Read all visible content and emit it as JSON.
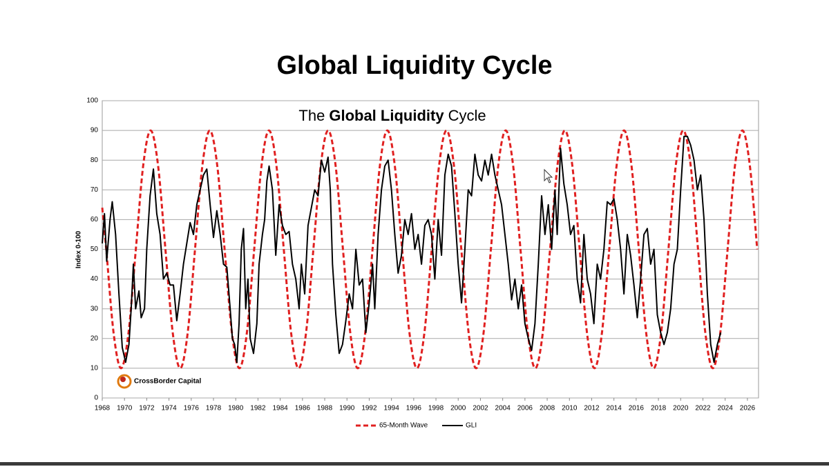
{
  "slide_title": "Global Liquidity Cycle",
  "logo": "CrossBorder Capital",
  "chart_data": {
    "type": "line",
    "title_parts": [
      "The",
      "Global Liquidity",
      "Cycle"
    ],
    "y_label": "Index 0-100",
    "xlim": [
      1968,
      2027
    ],
    "ylim": [
      0,
      100
    ],
    "xticks": [
      1968,
      1970,
      1972,
      1974,
      1976,
      1978,
      1980,
      1982,
      1984,
      1986,
      1988,
      1990,
      1992,
      1994,
      1996,
      1998,
      2000,
      2002,
      2004,
      2006,
      2008,
      2010,
      2012,
      2014,
      2016,
      2018,
      2020,
      2022,
      2024,
      2026
    ],
    "yticks": [
      0,
      10,
      20,
      30,
      40,
      50,
      60,
      70,
      80,
      90,
      100
    ],
    "grid": true,
    "series": [
      {
        "name": "65-Month Wave",
        "color": "#e02020",
        "dashed": true,
        "smooth": true,
        "x": [
          1968,
          1968.36,
          1969.025,
          1969.69,
          1970.355,
          1971.02,
          1971.685,
          1972.35,
          1973.015,
          1973.68,
          1974.345,
          1975.01,
          1975.675,
          1976.34,
          1977.005,
          1977.67,
          1978.335,
          1979,
          1979.665,
          1980.33,
          1980.995,
          1981.66,
          1982.325,
          1982.99,
          1983.655,
          1984.32,
          1984.985,
          1985.65,
          1986.315,
          1986.98,
          1987.645,
          1988.31,
          1988.975,
          1989.64,
          1990.305,
          1990.97,
          1991.635,
          1992.3,
          1992.965,
          1993.63,
          1994.295,
          1994.96,
          1995.625,
          1996.29,
          1996.955,
          1997.62,
          1998.285,
          1998.95,
          1999.615,
          2000.28,
          2000.945,
          2001.61,
          2002.275,
          2002.94,
          2003.605,
          2004.27,
          2004.935,
          2005.6,
          2006.265,
          2006.93,
          2007.595,
          2008.26,
          2008.925,
          2009.59,
          2010.255,
          2010.92,
          2011.585,
          2012.25,
          2012.915,
          2013.58,
          2014.245,
          2014.91,
          2015.575,
          2016.24,
          2016.905,
          2017.57,
          2018.235,
          2018.9,
          2019.565,
          2020.23,
          2020.895,
          2021.56,
          2022.225,
          2022.89,
          2023.555,
          2024.22,
          2024.885,
          2025.55,
          2026.215,
          2026.88
        ],
        "values": [
          64,
          50,
          21.7,
          10,
          21.7,
          50,
          78.3,
          90,
          78.3,
          50,
          21.7,
          10,
          21.7,
          50,
          78.3,
          90,
          78.3,
          50,
          21.7,
          10,
          21.7,
          50,
          78.3,
          90,
          78.3,
          50,
          21.7,
          10,
          21.7,
          50,
          78.3,
          90,
          78.3,
          50,
          21.7,
          10,
          21.7,
          50,
          78.3,
          90,
          78.3,
          50,
          21.7,
          10,
          21.7,
          50,
          78.3,
          90,
          78.3,
          50,
          21.7,
          10,
          21.7,
          50,
          78.3,
          90,
          78.3,
          50,
          21.7,
          10,
          21.7,
          50,
          78.3,
          90,
          78.3,
          50,
          21.7,
          10,
          21.7,
          50,
          78.3,
          90,
          78.3,
          50,
          21.7,
          10,
          21.7,
          50,
          78.3,
          90,
          78.3,
          50,
          21.7,
          10,
          21.7,
          50,
          78.3,
          90,
          78.3,
          50
        ]
      },
      {
        "name": "GLI",
        "color": "#000000",
        "dashed": false,
        "smooth": false,
        "x": [
          1968,
          1968.2,
          1968.4,
          1968.7,
          1968.9,
          1969.2,
          1969.5,
          1969.8,
          1970.1,
          1970.4,
          1970.6,
          1970.8,
          1971.0,
          1971.3,
          1971.5,
          1971.8,
          1972.0,
          1972.3,
          1972.6,
          1972.9,
          1973.2,
          1973.5,
          1973.8,
          1974.1,
          1974.4,
          1974.7,
          1975.0,
          1975.3,
          1975.6,
          1975.9,
          1976.2,
          1976.5,
          1976.8,
          1977.1,
          1977.4,
          1977.7,
          1978.0,
          1978.3,
          1978.6,
          1978.9,
          1979.2,
          1979.5,
          1979.7,
          1979.9,
          1980.1,
          1980.3,
          1980.5,
          1980.7,
          1980.9,
          1981.1,
          1981.3,
          1981.6,
          1981.9,
          1982.1,
          1982.4,
          1982.6,
          1982.8,
          1983.0,
          1983.3,
          1983.6,
          1983.9,
          1984.2,
          1984.5,
          1984.8,
          1985.1,
          1985.4,
          1985.7,
          1985.9,
          1986.2,
          1986.5,
          1986.8,
          1987.1,
          1987.4,
          1987.7,
          1988.0,
          1988.3,
          1988.5,
          1988.7,
          1989.0,
          1989.3,
          1989.6,
          1989.9,
          1990.2,
          1990.5,
          1990.8,
          1991.1,
          1991.4,
          1991.7,
          1992.0,
          1992.3,
          1992.5,
          1992.8,
          1993.1,
          1993.4,
          1993.7,
          1994.0,
          1994.3,
          1994.6,
          1994.9,
          1995.2,
          1995.5,
          1995.8,
          1996.1,
          1996.4,
          1996.7,
          1997.0,
          1997.3,
          1997.6,
          1997.9,
          1998.2,
          1998.5,
          1998.8,
          1999.1,
          1999.4,
          1999.7,
          2000.0,
          2000.3,
          2000.6,
          2000.9,
          2001.2,
          2001.5,
          2001.8,
          2002.1,
          2002.4,
          2002.7,
          2003.0,
          2003.3,
          2003.6,
          2003.9,
          2004.2,
          2004.5,
          2004.8,
          2005.1,
          2005.4,
          2005.7,
          2006.0,
          2006.3,
          2006.6,
          2006.9,
          2007.2,
          2007.5,
          2007.8,
          2008.1,
          2008.4,
          2008.7,
          2008.9,
          2009.2,
          2009.5,
          2009.8,
          2010.1,
          2010.4,
          2010.7,
          2011.0,
          2011.3,
          2011.6,
          2011.9,
          2012.2,
          2012.5,
          2012.8,
          2013.1,
          2013.4,
          2013.7,
          2014.0,
          2014.3,
          2014.6,
          2014.9,
          2015.2,
          2015.5,
          2015.8,
          2016.1,
          2016.4,
          2016.7,
          2017.0,
          2017.3,
          2017.6,
          2017.9,
          2018.2,
          2018.5,
          2018.8,
          2019.1,
          2019.4,
          2019.7,
          2020.0,
          2020.3,
          2020.6,
          2020.9,
          2021.2,
          2021.5,
          2021.8,
          2022.1,
          2022.4,
          2022.7,
          2023.0,
          2023.3,
          2023.6
        ],
        "values": [
          52,
          62,
          46,
          60,
          66,
          55,
          35,
          17,
          12,
          18,
          30,
          45,
          30,
          36,
          27,
          30,
          50,
          68,
          77,
          62,
          55,
          40,
          42,
          38,
          38,
          26,
          35,
          45,
          52,
          59,
          55,
          65,
          70,
          75,
          77,
          65,
          54,
          63,
          55,
          45,
          44,
          30,
          20,
          18,
          12,
          25,
          50,
          57,
          30,
          40,
          20,
          15,
          25,
          45,
          55,
          60,
          73,
          78,
          70,
          48,
          65,
          58,
          55,
          56,
          45,
          40,
          30,
          45,
          35,
          58,
          64,
          70,
          68,
          80,
          76,
          81,
          70,
          45,
          28,
          15,
          18,
          26,
          35,
          30,
          50,
          38,
          40,
          22,
          32,
          45,
          30,
          55,
          70,
          78,
          80,
          70,
          55,
          42,
          48,
          60,
          55,
          62,
          50,
          55,
          45,
          58,
          60,
          55,
          40,
          60,
          48,
          75,
          82,
          78,
          62,
          45,
          32,
          50,
          70,
          68,
          82,
          75,
          73,
          80,
          75,
          82,
          75,
          70,
          65,
          55,
          45,
          33,
          40,
          30,
          38,
          25,
          20,
          16,
          25,
          45,
          68,
          55,
          65,
          50,
          70,
          55,
          84,
          72,
          65,
          55,
          58,
          40,
          32,
          55,
          40,
          35,
          25,
          45,
          40,
          50,
          66,
          65,
          67,
          60,
          50,
          35,
          55,
          48,
          38,
          27,
          40,
          55,
          57,
          45,
          50,
          28,
          22,
          18,
          22,
          30,
          45,
          50,
          70,
          88,
          88,
          85,
          80,
          70,
          75,
          60,
          35,
          18,
          12,
          18,
          22
        ]
      }
    ]
  }
}
